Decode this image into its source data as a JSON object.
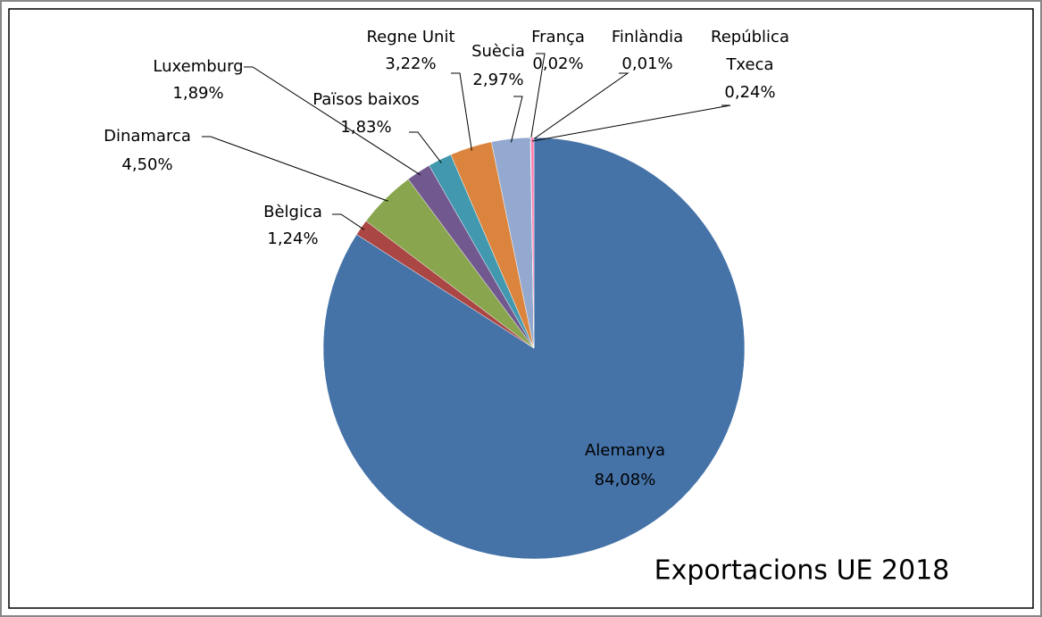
{
  "chart_data": {
    "type": "pie",
    "title": "Exportacions UE 2018",
    "categories": [
      "Alemanya",
      "Bèlgica",
      "Dinamarca",
      "Luxemburg",
      "Països baixos",
      "Regne Unit",
      "Suècia",
      "França",
      "Finlàndia",
      "República Txeca"
    ],
    "values": [
      84.08,
      1.24,
      4.5,
      1.89,
      1.83,
      3.22,
      2.97,
      0.02,
      0.01,
      0.24
    ],
    "value_labels": [
      "84,08%",
      "1,24%",
      "4,50%",
      "1,89%",
      "1,83%",
      "3,22%",
      "2,97%",
      "0,02%",
      "0,01%",
      "0,24%"
    ],
    "colors": [
      "#4572a7",
      "#aa4643",
      "#89a54e",
      "#71588f",
      "#4198af",
      "#db843d",
      "#93a9cf",
      "#d19392",
      "#b9cd96",
      "#ff7fb0"
    ]
  }
}
